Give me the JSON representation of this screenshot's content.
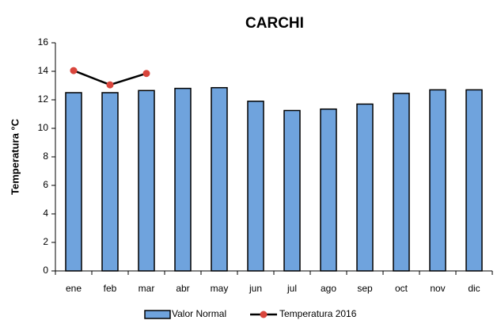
{
  "chart_data": {
    "type": "bar",
    "title": "CARCHI",
    "y_label": "Temperatura °C",
    "categories": [
      "ene",
      "feb",
      "mar",
      "abr",
      "may",
      "jun",
      "jul",
      "ago",
      "sep",
      "oct",
      "nov",
      "dic"
    ],
    "series": [
      {
        "name": "Valor Normal",
        "type": "bar",
        "color": "#6fa3dd",
        "values": [
          12.5,
          12.5,
          12.65,
          12.8,
          12.85,
          11.9,
          11.25,
          11.35,
          11.7,
          12.45,
          12.7,
          12.7
        ]
      },
      {
        "name": "Temperatura 2016",
        "type": "line",
        "color": "#d9453c",
        "line_color": "#000000",
        "values": [
          14.05,
          13.05,
          13.85,
          null,
          null,
          null,
          null,
          null,
          null,
          null,
          null,
          null
        ]
      }
    ],
    "ylim": [
      0,
      16
    ],
    "yticks": [
      0,
      2,
      4,
      6,
      8,
      10,
      12,
      14,
      16
    ],
    "grid": false,
    "legend": "bottom"
  }
}
